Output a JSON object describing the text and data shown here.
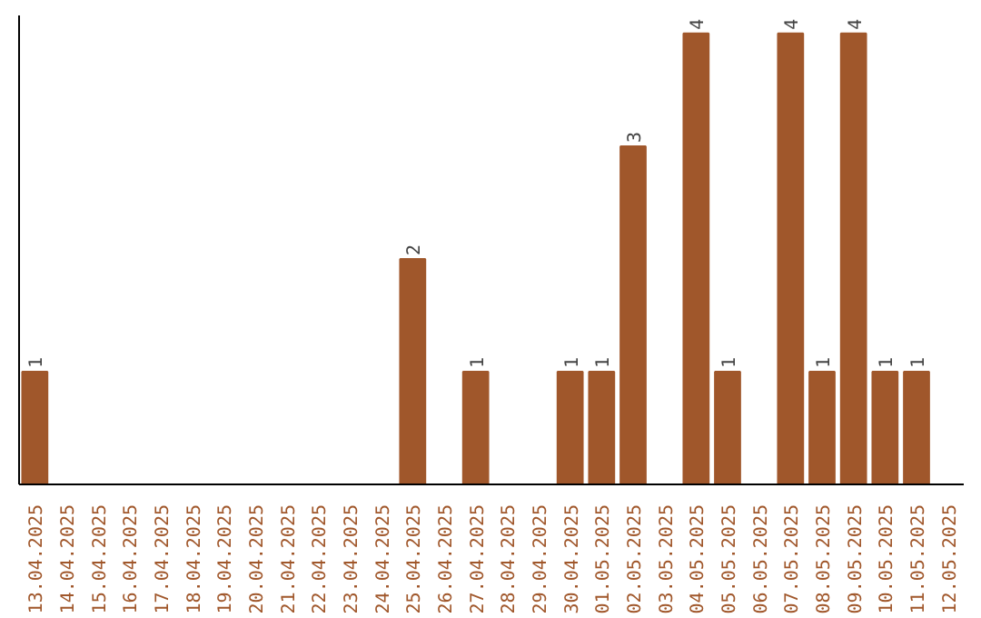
{
  "chart_data": {
    "type": "bar",
    "categories": [
      "13.04.2025",
      "14.04.2025",
      "15.04.2025",
      "16.04.2025",
      "17.04.2025",
      "18.04.2025",
      "19.04.2025",
      "20.04.2025",
      "21.04.2025",
      "22.04.2025",
      "23.04.2025",
      "24.04.2025",
      "25.04.2025",
      "26.04.2025",
      "27.04.2025",
      "28.04.2025",
      "29.04.2025",
      "30.04.2025",
      "01.05.2025",
      "02.05.2025",
      "03.05.2025",
      "04.05.2025",
      "05.05.2025",
      "06.05.2025",
      "07.05.2025",
      "08.05.2025",
      "09.05.2025",
      "10.05.2025",
      "11.05.2025",
      "12.05.2025"
    ],
    "values": [
      1,
      0,
      0,
      0,
      0,
      0,
      0,
      0,
      0,
      0,
      0,
      0,
      2,
      0,
      1,
      0,
      0,
      1,
      1,
      3,
      0,
      4,
      1,
      0,
      4,
      1,
      4,
      1,
      1,
      0
    ],
    "value_labels": [
      "1",
      null,
      null,
      null,
      null,
      null,
      null,
      null,
      null,
      null,
      null,
      null,
      "2",
      null,
      "1",
      null,
      null,
      "1",
      "1",
      "3",
      null,
      "4",
      "1",
      null,
      "4",
      "1",
      "4",
      "1",
      "1",
      null
    ],
    "color": "#a0572b",
    "tick_labels": "x",
    "grid": false
  }
}
